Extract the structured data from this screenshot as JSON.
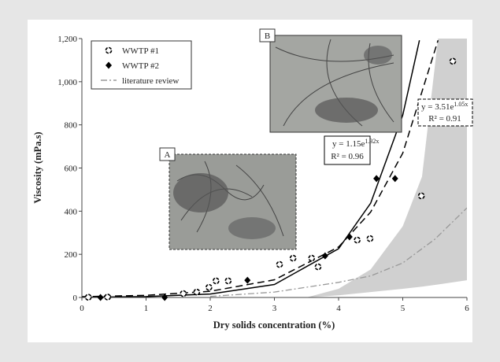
{
  "chart_data": {
    "type": "scatter",
    "xlabel": "Dry solids concentration (%)",
    "ylabel": "Viscosity (mPa.s)",
    "xlim": [
      0,
      6
    ],
    "xticks": [
      0,
      1,
      2,
      3,
      4,
      5,
      6
    ],
    "ylim": [
      0,
      1200
    ],
    "yticks": [
      0,
      200,
      400,
      600,
      800,
      {
        "value": 1000,
        "label": "1,000"
      },
      {
        "value": 1200,
        "label": "1,200"
      }
    ],
    "series": [
      {
        "name": "WWTP #1",
        "marker": "circle",
        "color": "#000000",
        "x": [
          0.1,
          0.4,
          1.58,
          1.79,
          1.98,
          2.09,
          2.28,
          3.08,
          3.29,
          3.58,
          3.68,
          4.29,
          4.49,
          5.29,
          5.78
        ],
        "values": [
          1,
          2,
          18,
          25,
          47,
          77,
          77,
          153,
          182,
          182,
          142,
          266,
          273,
          471,
          1095
        ]
      },
      {
        "name": "WWTP #2",
        "marker": "diamond",
        "color": "#000000",
        "x": [
          0.29,
          1.29,
          2.58,
          3.79,
          4.17,
          4.59,
          4.88
        ],
        "values": [
          0,
          0,
          80,
          193,
          281,
          551,
          551
        ]
      },
      {
        "name": "literature review",
        "marker": "dashdot",
        "color": "#999999",
        "x": [
          2,
          3,
          4,
          4.5,
          5,
          5.5,
          6
        ],
        "values": [
          5,
          25,
          70,
          100,
          160,
          270,
          415
        ]
      }
    ],
    "fits": [
      {
        "style": "solid",
        "color": "#000000",
        "x": [
          0,
          1,
          2,
          3,
          4,
          4.5,
          5,
          5.26
        ],
        "values": [
          1.15,
          4.3,
          16.1,
          60.3,
          225.9,
          437,
          845,
          1192
        ],
        "equation": "y = 1.15e",
        "exponent": "1.32x",
        "r2": "R² = 0.96"
      },
      {
        "style": "dashed",
        "color": "#000000",
        "x": [
          0,
          1,
          2,
          3,
          4,
          4.5,
          5,
          5.55
        ],
        "values": [
          3.51,
          10,
          28.7,
          81.9,
          234,
          396,
          669,
          1192
        ],
        "equation": "y = 3.51e",
        "exponent": "1.05x",
        "r2": "R² = 0.91"
      }
    ],
    "band": {
      "color": "#d0d0d0",
      "x": [
        3.5,
        4,
        4.5,
        5,
        5.3,
        5.55,
        6
      ],
      "upper": [
        0,
        40,
        130,
        330,
        560,
        1200,
        1200
      ],
      "lower": [
        0,
        10,
        25,
        40,
        50,
        60,
        80
      ]
    },
    "insets": [
      "A",
      "B"
    ]
  }
}
